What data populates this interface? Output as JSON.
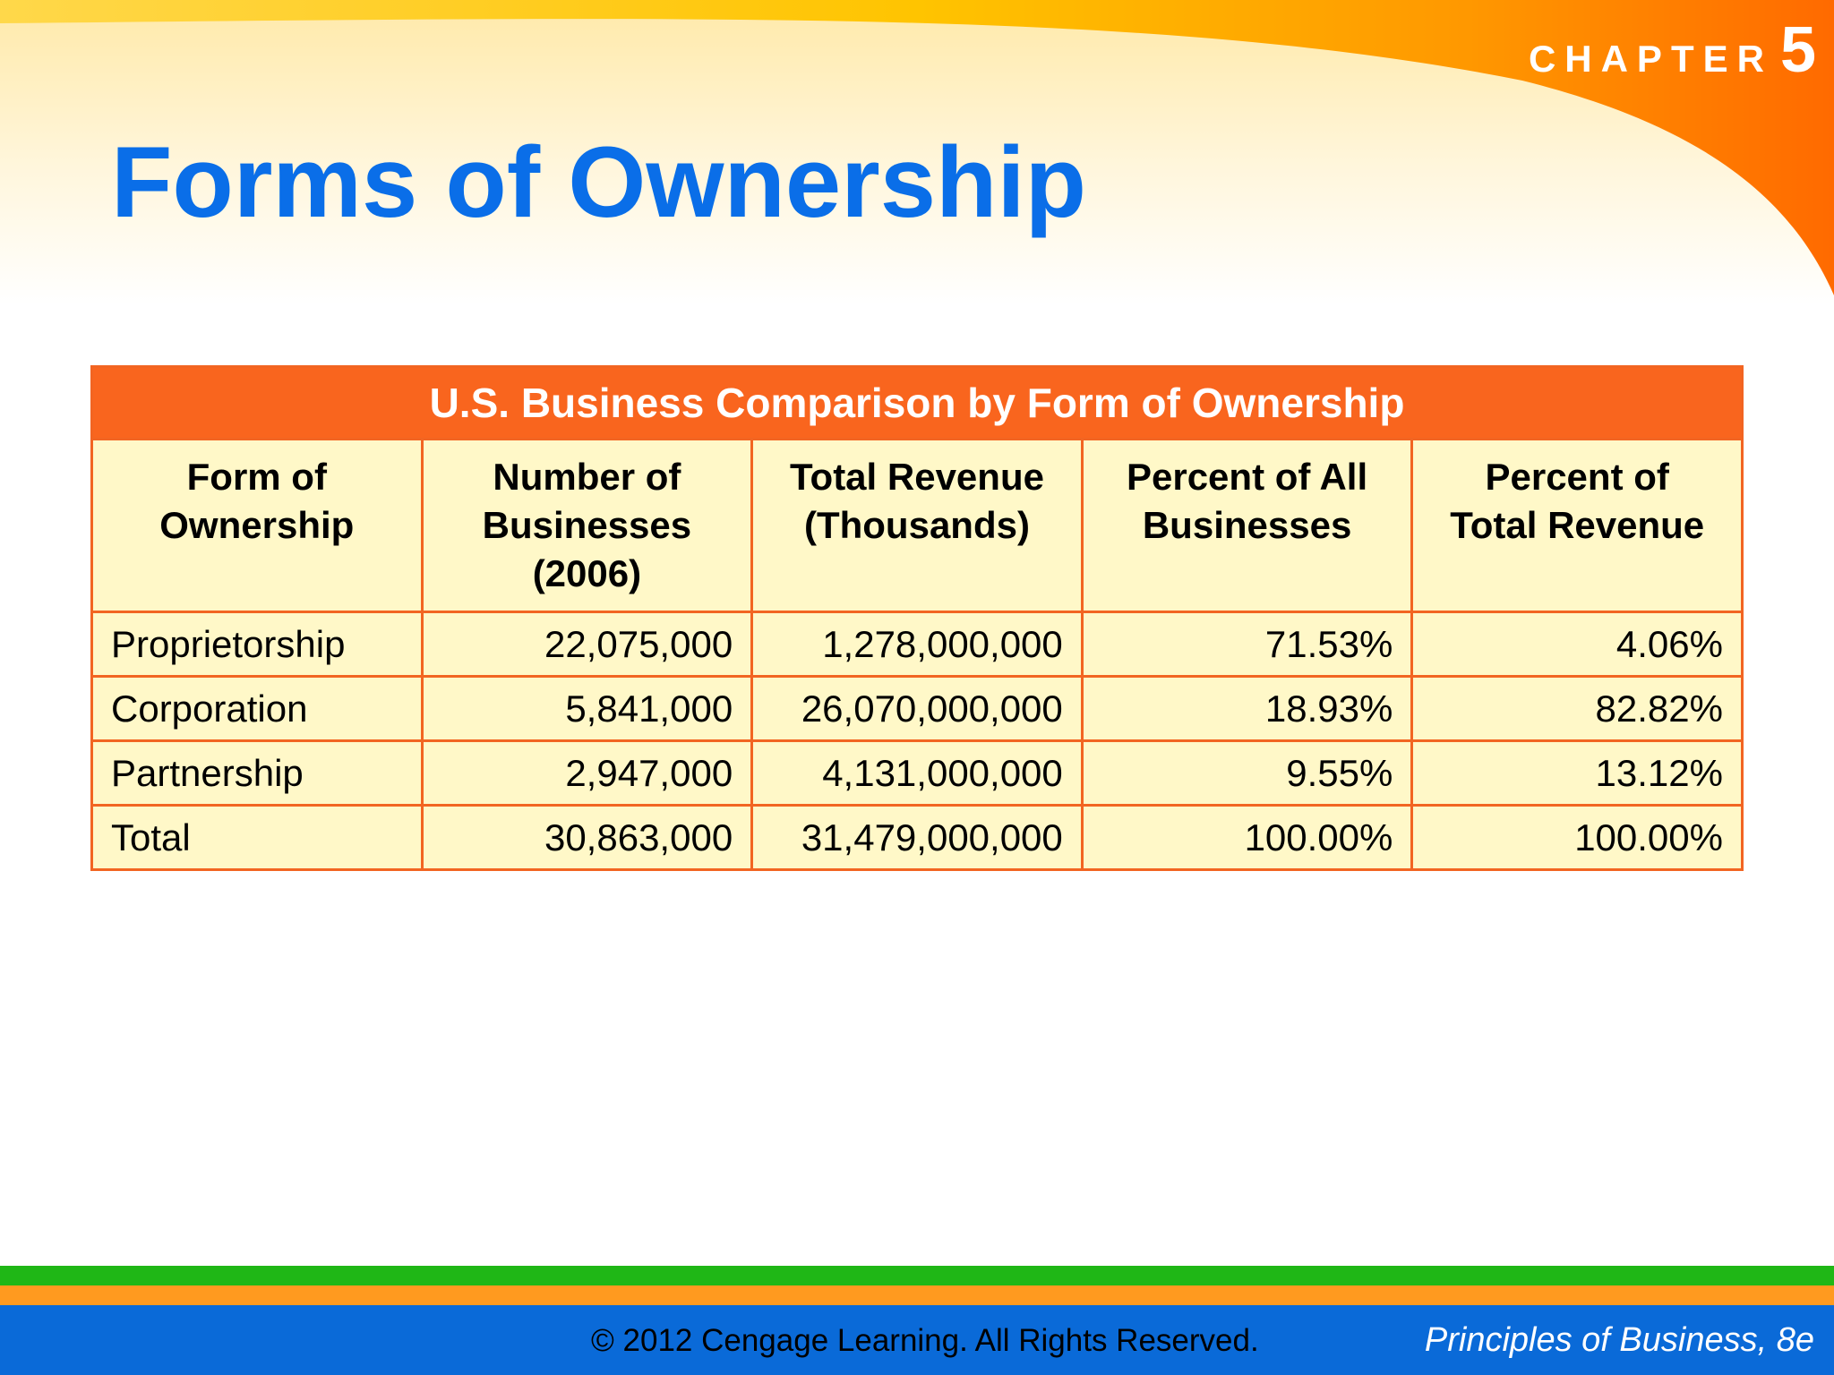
{
  "header": {
    "chapter_word": "CHAPTER",
    "chapter_number": "5",
    "title": "Forms of Ownership"
  },
  "table": {
    "caption": "U.S. Business Comparison by Form of Ownership",
    "columns": [
      [
        "Form of",
        "Ownership"
      ],
      [
        "Number of",
        "Businesses",
        "(2006)"
      ],
      [
        "Total Revenue",
        "(Thousands)"
      ],
      [
        "Percent of All",
        "Businesses"
      ],
      [
        "Percent of",
        "Total Revenue"
      ]
    ],
    "rows": [
      [
        "Proprietorship",
        "22,075,000",
        "1,278,000,000",
        "71.53%",
        "4.06%"
      ],
      [
        "Corporation",
        "5,841,000",
        "26,070,000,000",
        "18.93%",
        "82.82%"
      ],
      [
        "Partnership",
        "2,947,000",
        "4,131,000,000",
        "9.55%",
        "13.12%"
      ],
      [
        "Total",
        "30,863,000",
        "31,479,000,000",
        "100.00%",
        "100.00%"
      ]
    ]
  },
  "footer": {
    "copyright": "© 2012 Cengage Learning. All Rights Reserved.",
    "book_title": "Principles of Business, 8e"
  },
  "colors": {
    "title_blue": "#0a6ee8",
    "table_orange": "#f9651e",
    "table_fill": "#fff8c8",
    "footer_blue": "#0a6ad8",
    "stripe_green": "#1fb716",
    "stripe_orange": "#ff9a1f"
  }
}
